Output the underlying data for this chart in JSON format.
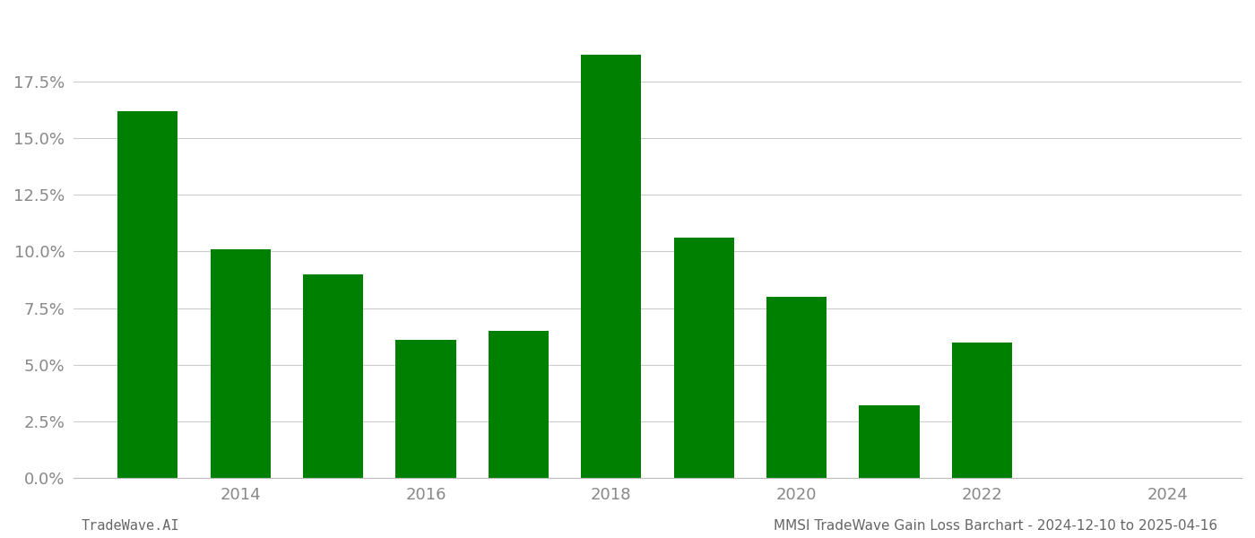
{
  "years": [
    2013,
    2014,
    2015,
    2016,
    2017,
    2018,
    2019,
    2020,
    2021,
    2022
  ],
  "values": [
    0.162,
    0.101,
    0.09,
    0.061,
    0.065,
    0.187,
    0.106,
    0.08,
    0.032,
    0.06
  ],
  "bar_color": "#008000",
  "background_color": "#ffffff",
  "grid_color": "#cccccc",
  "xtick_labels": [
    "2014",
    "2016",
    "2018",
    "2020",
    "2022",
    "2024"
  ],
  "xtick_positions": [
    2014,
    2016,
    2018,
    2020,
    2022,
    2024
  ],
  "ytick_labels": [
    "0.0%",
    "2.5%",
    "5.0%",
    "7.5%",
    "10.0%",
    "12.5%",
    "15.0%",
    "17.5%"
  ],
  "ytick_values": [
    0.0,
    0.025,
    0.05,
    0.075,
    0.1,
    0.125,
    0.15,
    0.175
  ],
  "ylim": [
    0,
    0.205
  ],
  "xlim": [
    2012.2,
    2024.8
  ],
  "footer_left": "TradeWave.AI",
  "footer_right": "MMSI TradeWave Gain Loss Barchart - 2024-12-10 to 2025-04-16",
  "footer_fontsize": 11,
  "bar_width": 0.65,
  "tick_fontsize": 13
}
